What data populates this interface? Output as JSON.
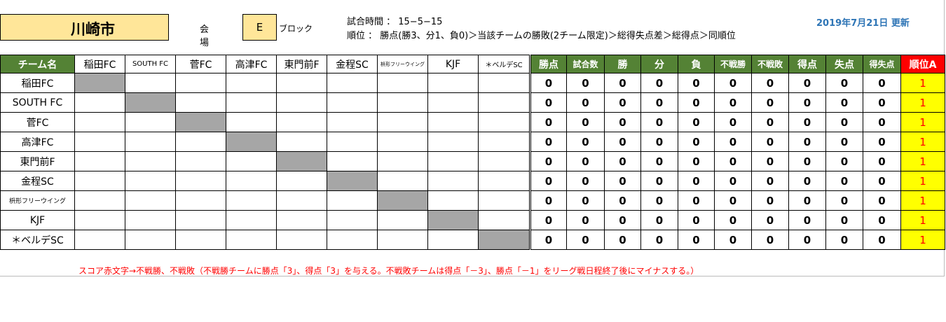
{
  "header": {
    "venue_city": "川崎市",
    "venue_label": "会場",
    "block": "E",
    "block_label": "ブロック",
    "match_time": "試合時間 ： 15−5−15",
    "ranking_rule": "順位 ： 勝点(勝3、分1、負0)＞当該チームの勝敗(2チーム限定)＞総得失点差＞総得点＞同順位",
    "updated": "2019年7月21日 更新"
  },
  "table": {
    "team_header": "チーム名",
    "teams": [
      "稲田FC",
      "SOUTH FC",
      "菅FC",
      "高津FC",
      "東門前F",
      "金程SC",
      "枡形フリーウイング",
      "KJF",
      "＊ベルデSC"
    ],
    "stat_headers": [
      "勝点",
      "試合数",
      "勝",
      "分",
      "負",
      "不戦勝",
      "不戦敗",
      "得点",
      "失点",
      "得失点"
    ],
    "rank_header": "順位A",
    "rows": [
      {
        "stats": [
          "0",
          "0",
          "0",
          "0",
          "0",
          "0",
          "0",
          "0",
          "0",
          "0"
        ],
        "rank": "1"
      },
      {
        "stats": [
          "0",
          "0",
          "0",
          "0",
          "0",
          "0",
          "0",
          "0",
          "0",
          "0"
        ],
        "rank": "1"
      },
      {
        "stats": [
          "0",
          "0",
          "0",
          "0",
          "0",
          "0",
          "0",
          "0",
          "0",
          "0"
        ],
        "rank": "1"
      },
      {
        "stats": [
          "0",
          "0",
          "0",
          "0",
          "0",
          "0",
          "0",
          "0",
          "0",
          "0"
        ],
        "rank": "1"
      },
      {
        "stats": [
          "0",
          "0",
          "0",
          "0",
          "0",
          "0",
          "0",
          "0",
          "0",
          "0"
        ],
        "rank": "1"
      },
      {
        "stats": [
          "0",
          "0",
          "0",
          "0",
          "0",
          "0",
          "0",
          "0",
          "0",
          "0"
        ],
        "rank": "1"
      },
      {
        "stats": [
          "0",
          "0",
          "0",
          "0",
          "0",
          "0",
          "0",
          "0",
          "0",
          "0"
        ],
        "rank": "1"
      },
      {
        "stats": [
          "0",
          "0",
          "0",
          "0",
          "0",
          "0",
          "0",
          "0",
          "0",
          "0"
        ],
        "rank": "1"
      },
      {
        "stats": [
          "0",
          "0",
          "0",
          "0",
          "0",
          "0",
          "0",
          "0",
          "0",
          "0"
        ],
        "rank": "1"
      }
    ]
  },
  "footnote": "スコア赤文字→不戦勝、不戦敗（不戦勝チームに勝点「3」、得点「3」を与える。不戦敗チームは得点「－3」、勝点「－1」をリーグ戦日程終了後にマイナスする。）",
  "colors": {
    "header_green": "#548235",
    "rank_red": "#ff0000",
    "rank_yellow": "#ffff00",
    "venue_fill": "#ffe699",
    "updated_blue": "#2e75b6"
  }
}
